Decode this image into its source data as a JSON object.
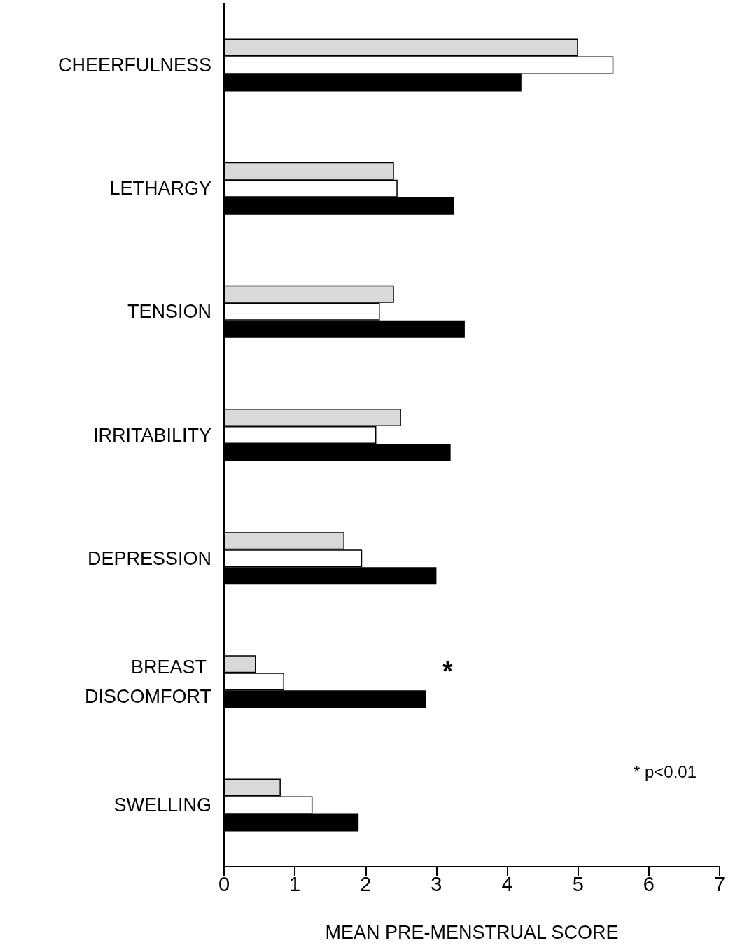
{
  "chart_data": {
    "type": "bar",
    "orientation": "horizontal",
    "categories": [
      "CHEERFULNESS",
      "LETHARGY",
      "TENSION",
      "IRRITABILITY",
      "DEPRESSION",
      "BREAST DISCOMFORT",
      "SWELLING"
    ],
    "series": [
      {
        "color": "#d9d9d9",
        "values": [
          5.0,
          2.4,
          2.4,
          2.5,
          1.7,
          0.45,
          0.8
        ]
      },
      {
        "color": "#ffffff",
        "values": [
          5.5,
          2.45,
          2.2,
          2.15,
          1.95,
          0.85,
          1.25
        ]
      },
      {
        "color": "#000000",
        "values": [
          4.2,
          3.25,
          3.4,
          3.2,
          3.0,
          2.85,
          1.9
        ]
      }
    ],
    "xlim": [
      0,
      7
    ],
    "xticks": [
      0,
      1,
      2,
      3,
      4,
      5,
      6,
      7
    ],
    "xlabel": "MEAN PRE-MENSTRUAL SCORE",
    "annotations": [
      "*",
      "* p<0.01"
    ]
  }
}
